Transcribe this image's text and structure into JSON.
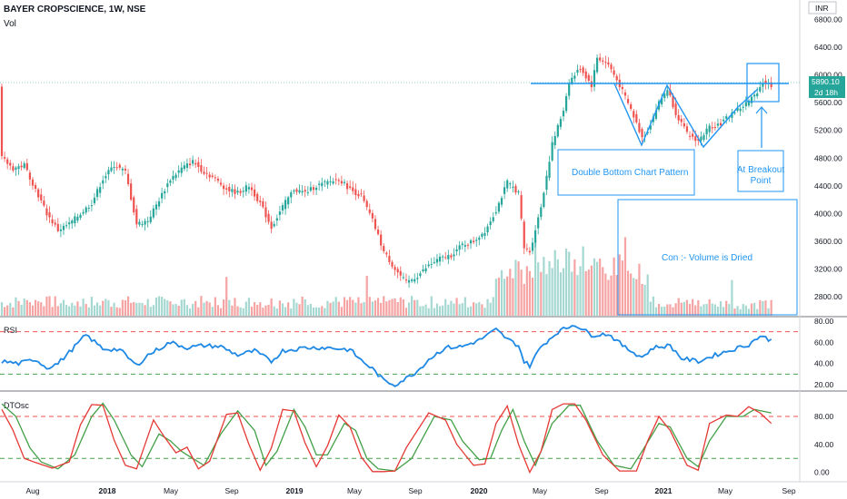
{
  "header": {
    "symbol_line": "BAYER CROPSCIENCE, 1W, NSE",
    "volume_label": "Vol",
    "currency": "INR"
  },
  "price_pane": {
    "y_ticks": [
      "6800.00",
      "6400.00",
      "6000.00",
      "5600.00",
      "5200.00",
      "4800.00",
      "4400.00",
      "4000.00",
      "3600.00",
      "3200.00",
      "2800.00"
    ],
    "last_price": "5890.10",
    "countdown": "2d 18h",
    "annotations": {
      "pattern_label": "Double Bottom Chart Pattern",
      "breakout_label_1": "At Breakout",
      "breakout_label_2": "Point",
      "volume_note": "Con :- Volume is Dried"
    }
  },
  "rsi_pane": {
    "label": "RSI",
    "y_ticks": [
      "80.00",
      "60.00",
      "40.00",
      "20.00"
    ],
    "upper": 70,
    "lower": 30
  },
  "dto_pane": {
    "label": "DTOsc",
    "y_ticks": [
      "80.00",
      "40.00",
      "0.00"
    ],
    "upper": 80,
    "lower": 20
  },
  "time_axis": [
    "Aug",
    "2018",
    "May",
    "Sep",
    "2019",
    "May",
    "Sep",
    "2020",
    "May",
    "Sep",
    "2021",
    "May",
    "Sep"
  ],
  "colors": {
    "up": "#26a69a",
    "down": "#ef5350",
    "vol_up": "#a6d8d2",
    "vol_down": "#f5a3a3",
    "annotation": "#2196f3",
    "rsi_line": "#1e88e5",
    "dto_fast": "#e53935",
    "dto_slow": "#43a047",
    "price_badge": "#26a69a"
  },
  "chart_data": {
    "type": "candlestick",
    "price_anchors": [
      [
        0,
        4800
      ],
      [
        4,
        4650
      ],
      [
        8,
        4700
      ],
      [
        12,
        4350
      ],
      [
        16,
        4000
      ],
      [
        20,
        3760
      ],
      [
        24,
        3850
      ],
      [
        28,
        4000
      ],
      [
        32,
        4150
      ],
      [
        36,
        4500
      ],
      [
        40,
        4700
      ],
      [
        44,
        4600
      ],
      [
        48,
        3850
      ],
      [
        52,
        3900
      ],
      [
        56,
        4200
      ],
      [
        60,
        4500
      ],
      [
        64,
        4650
      ],
      [
        68,
        4750
      ],
      [
        72,
        4600
      ],
      [
        76,
        4500
      ],
      [
        80,
        4350
      ],
      [
        84,
        4300
      ],
      [
        88,
        4400
      ],
      [
        92,
        4150
      ],
      [
        96,
        3800
      ],
      [
        100,
        4100
      ],
      [
        104,
        4350
      ],
      [
        108,
        4300
      ],
      [
        112,
        4400
      ],
      [
        116,
        4450
      ],
      [
        120,
        4500
      ],
      [
        124,
        4350
      ],
      [
        128,
        4250
      ],
      [
        132,
        3900
      ],
      [
        136,
        3450
      ],
      [
        140,
        3200
      ],
      [
        144,
        3000
      ],
      [
        148,
        3100
      ],
      [
        152,
        3250
      ],
      [
        156,
        3350
      ],
      [
        160,
        3400
      ],
      [
        164,
        3550
      ],
      [
        168,
        3600
      ],
      [
        172,
        3750
      ],
      [
        176,
        4050
      ],
      [
        180,
        4450
      ],
      [
        184,
        4300
      ],
      [
        186,
        3500
      ],
      [
        188,
        3450
      ],
      [
        192,
        4100
      ],
      [
        196,
        5000
      ],
      [
        200,
        5500
      ],
      [
        202,
        5900
      ],
      [
        206,
        6100
      ],
      [
        210,
        5850
      ],
      [
        212,
        6250
      ],
      [
        216,
        6150
      ],
      [
        220,
        5850
      ],
      [
        224,
        5500
      ],
      [
        228,
        5100
      ],
      [
        230,
        5200
      ],
      [
        234,
        5600
      ],
      [
        237,
        5800
      ],
      [
        240,
        5450
      ],
      [
        244,
        5150
      ],
      [
        248,
        5050
      ],
      [
        252,
        5250
      ],
      [
        256,
        5300
      ],
      [
        260,
        5450
      ],
      [
        264,
        5550
      ],
      [
        268,
        5700
      ],
      [
        271,
        5900
      ],
      [
        274,
        5850
      ]
    ],
    "rsi_anchors": [
      [
        0,
        42
      ],
      [
        6,
        40
      ],
      [
        12,
        44
      ],
      [
        16,
        36
      ],
      [
        20,
        40
      ],
      [
        26,
        56
      ],
      [
        30,
        67
      ],
      [
        36,
        54
      ],
      [
        42,
        53
      ],
      [
        48,
        38
      ],
      [
        52,
        48
      ],
      [
        60,
        60
      ],
      [
        66,
        55
      ],
      [
        72,
        57
      ],
      [
        78,
        56
      ],
      [
        84,
        48
      ],
      [
        90,
        52
      ],
      [
        96,
        42
      ],
      [
        100,
        52
      ],
      [
        108,
        55
      ],
      [
        116,
        55
      ],
      [
        124,
        53
      ],
      [
        128,
        43
      ],
      [
        132,
        35
      ],
      [
        136,
        24
      ],
      [
        140,
        20
      ],
      [
        144,
        26
      ],
      [
        148,
        33
      ],
      [
        152,
        44
      ],
      [
        158,
        55
      ],
      [
        164,
        56
      ],
      [
        170,
        62
      ],
      [
        176,
        72
      ],
      [
        180,
        63
      ],
      [
        184,
        57
      ],
      [
        186,
        42
      ],
      [
        188,
        38
      ],
      [
        192,
        56
      ],
      [
        198,
        70
      ],
      [
        204,
        77
      ],
      [
        210,
        67
      ],
      [
        216,
        68
      ],
      [
        222,
        55
      ],
      [
        228,
        46
      ],
      [
        232,
        55
      ],
      [
        238,
        57
      ],
      [
        242,
        45
      ],
      [
        248,
        42
      ],
      [
        254,
        48
      ],
      [
        260,
        53
      ],
      [
        266,
        58
      ],
      [
        270,
        66
      ],
      [
        274,
        62
      ]
    ],
    "dto_fast_anchors": [
      [
        0,
        90
      ],
      [
        4,
        60
      ],
      [
        8,
        20
      ],
      [
        12,
        14
      ],
      [
        18,
        6
      ],
      [
        24,
        15
      ],
      [
        28,
        68
      ],
      [
        32,
        97
      ],
      [
        36,
        96
      ],
      [
        40,
        46
      ],
      [
        44,
        10
      ],
      [
        48,
        5
      ],
      [
        54,
        75
      ],
      [
        58,
        50
      ],
      [
        62,
        28
      ],
      [
        66,
        36
      ],
      [
        70,
        5
      ],
      [
        74,
        16
      ],
      [
        80,
        83
      ],
      [
        84,
        85
      ],
      [
        88,
        40
      ],
      [
        92,
        3
      ],
      [
        96,
        35
      ],
      [
        100,
        90
      ],
      [
        104,
        88
      ],
      [
        108,
        42
      ],
      [
        112,
        8
      ],
      [
        116,
        38
      ],
      [
        120,
        82
      ],
      [
        124,
        65
      ],
      [
        128,
        22
      ],
      [
        132,
        1
      ],
      [
        136,
        1
      ],
      [
        140,
        2
      ],
      [
        144,
        35
      ],
      [
        148,
        60
      ],
      [
        152,
        85
      ],
      [
        158,
        75
      ],
      [
        162,
        40
      ],
      [
        168,
        10
      ],
      [
        172,
        12
      ],
      [
        176,
        70
      ],
      [
        180,
        95
      ],
      [
        184,
        40
      ],
      [
        188,
        0
      ],
      [
        192,
        30
      ],
      [
        196,
        90
      ],
      [
        200,
        98
      ],
      [
        204,
        98
      ],
      [
        208,
        75
      ],
      [
        214,
        25
      ],
      [
        220,
        2
      ],
      [
        226,
        2
      ],
      [
        230,
        45
      ],
      [
        234,
        80
      ],
      [
        238,
        60
      ],
      [
        244,
        10
      ],
      [
        248,
        3
      ],
      [
        252,
        70
      ],
      [
        258,
        82
      ],
      [
        262,
        80
      ],
      [
        266,
        94
      ],
      [
        270,
        85
      ],
      [
        274,
        70
      ]
    ],
    "dto_slow_anchors": [
      [
        0,
        98
      ],
      [
        5,
        80
      ],
      [
        10,
        35
      ],
      [
        14,
        15
      ],
      [
        20,
        5
      ],
      [
        26,
        25
      ],
      [
        32,
        80
      ],
      [
        36,
        99
      ],
      [
        40,
        75
      ],
      [
        46,
        25
      ],
      [
        50,
        8
      ],
      [
        56,
        55
      ],
      [
        60,
        45
      ],
      [
        64,
        30
      ],
      [
        68,
        20
      ],
      [
        72,
        10
      ],
      [
        78,
        55
      ],
      [
        84,
        88
      ],
      [
        90,
        60
      ],
      [
        94,
        10
      ],
      [
        98,
        30
      ],
      [
        104,
        90
      ],
      [
        108,
        65
      ],
      [
        112,
        25
      ],
      [
        116,
        25
      ],
      [
        122,
        70
      ],
      [
        126,
        60
      ],
      [
        130,
        20
      ],
      [
        134,
        5
      ],
      [
        140,
        2
      ],
      [
        146,
        20
      ],
      [
        150,
        50
      ],
      [
        154,
        80
      ],
      [
        160,
        75
      ],
      [
        164,
        45
      ],
      [
        170,
        18
      ],
      [
        174,
        20
      ],
      [
        178,
        60
      ],
      [
        182,
        90
      ],
      [
        186,
        45
      ],
      [
        190,
        10
      ],
      [
        196,
        70
      ],
      [
        202,
        96
      ],
      [
        206,
        96
      ],
      [
        212,
        45
      ],
      [
        218,
        10
      ],
      [
        224,
        5
      ],
      [
        228,
        30
      ],
      [
        234,
        70
      ],
      [
        238,
        65
      ],
      [
        244,
        20
      ],
      [
        248,
        8
      ],
      [
        252,
        45
      ],
      [
        258,
        80
      ],
      [
        264,
        80
      ],
      [
        268,
        90
      ],
      [
        274,
        85
      ]
    ]
  }
}
